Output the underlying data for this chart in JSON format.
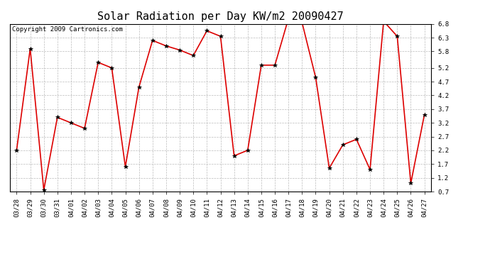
{
  "title": "Solar Radiation per Day KW/m2 20090427",
  "copyright": "Copyright 2009 Cartronics.com",
  "dates": [
    "03/28",
    "03/29",
    "03/30",
    "03/31",
    "04/01",
    "04/02",
    "04/03",
    "04/04",
    "04/05",
    "04/06",
    "04/07",
    "04/08",
    "04/09",
    "04/10",
    "04/11",
    "04/12",
    "04/13",
    "04/14",
    "04/15",
    "04/16",
    "04/17",
    "04/18",
    "04/19",
    "04/20",
    "04/21",
    "04/22",
    "04/23",
    "04/24",
    "04/25",
    "04/26",
    "04/27"
  ],
  "values": [
    2.2,
    5.9,
    0.75,
    3.4,
    3.2,
    3.0,
    5.4,
    5.2,
    1.6,
    4.5,
    6.2,
    6.0,
    5.85,
    5.65,
    6.55,
    6.35,
    2.0,
    2.2,
    5.3,
    5.3,
    7.0,
    6.85,
    4.85,
    1.55,
    2.4,
    2.6,
    1.5,
    6.9,
    6.35,
    1.0,
    3.5
  ],
  "line_color": "#dd0000",
  "marker": "*",
  "marker_size": 4,
  "marker_color": "#000000",
  "background_color": "#ffffff",
  "grid_color": "#bbbbbb",
  "ylim": [
    0.7,
    6.8
  ],
  "yticks": [
    0.7,
    1.2,
    1.7,
    2.2,
    2.7,
    3.2,
    3.7,
    4.2,
    4.7,
    5.2,
    5.8,
    6.3,
    6.8
  ],
  "title_fontsize": 11,
  "copyright_fontsize": 6.5,
  "tick_fontsize": 6.5
}
